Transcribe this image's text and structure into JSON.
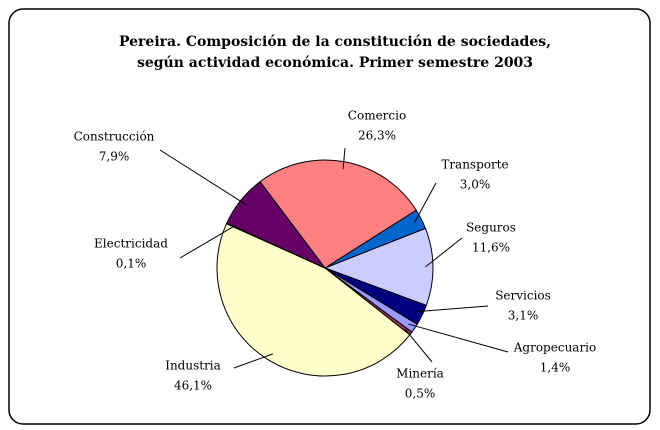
{
  "chart_data": {
    "type": "pie",
    "title": [
      "Pereira. Composición de la constitución de sociedades,",
      "según actividad económica. Primer semestre 2003"
    ],
    "categories": [
      "Comercio",
      "Transporte",
      "Seguros",
      "Servicios",
      "Agropecuario",
      "Minería",
      "Industria",
      "Electricidad",
      "Construcción"
    ],
    "values": [
      26.3,
      3.0,
      11.6,
      3.1,
      1.4,
      0.5,
      46.1,
      0.1,
      7.9
    ],
    "value_labels": [
      "26,3%",
      "3,0%",
      "11,6%",
      "3,1%",
      "1,4%",
      "0,5%",
      "46,1%",
      "0,1%",
      "7,9%"
    ],
    "colors": [
      "#ff8080",
      "#0066cc",
      "#ccccff",
      "#000080",
      "#9999ff",
      "#993366",
      "#ffffcc",
      "#ccffff",
      "#660066"
    ]
  }
}
